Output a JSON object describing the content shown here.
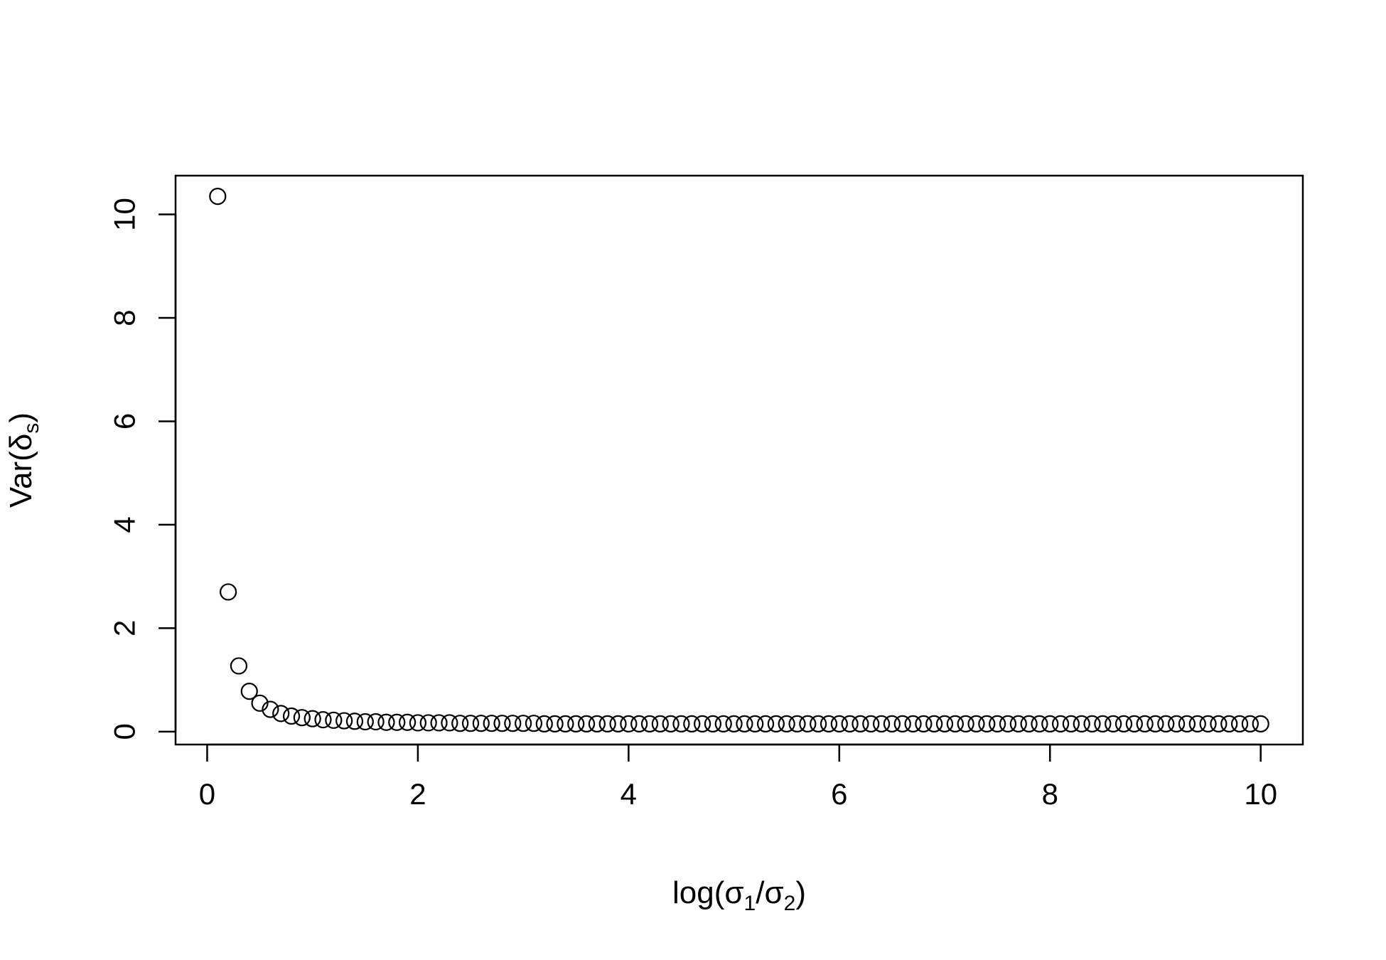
{
  "chart_data": {
    "type": "scatter",
    "title": "",
    "xlabel": {
      "base": "log(σ",
      "sub1": "1",
      "mid": "/σ",
      "sub2": "2",
      "end": ")"
    },
    "ylabel": {
      "base": "Var(δ",
      "sub": "s",
      "end": ")"
    },
    "xlim": [
      -0.3,
      10.4
    ],
    "ylim": [
      -0.25,
      10.75
    ],
    "x_ticks": [
      0,
      2,
      4,
      6,
      8,
      10
    ],
    "x_tick_labels": [
      "0",
      "2",
      "4",
      "6",
      "8",
      "10"
    ],
    "y_ticks": [
      0,
      2,
      4,
      6,
      8,
      10
    ],
    "y_tick_labels": [
      "0",
      "2",
      "4",
      "6",
      "8",
      "10"
    ],
    "grid": false,
    "legend": "none",
    "marker": "open-circle",
    "x": [
      0.1,
      0.2,
      0.3,
      0.4,
      0.5,
      0.6,
      0.7,
      0.8,
      0.9,
      1.0,
      1.1,
      1.2,
      1.3,
      1.4,
      1.5,
      1.6,
      1.7,
      1.8,
      1.9,
      2.0,
      2.1,
      2.2,
      2.3,
      2.4,
      2.5,
      2.6,
      2.7,
      2.8,
      2.9,
      3.0,
      3.1,
      3.2,
      3.3,
      3.4,
      3.5,
      3.6,
      3.7,
      3.8,
      3.9,
      4.0,
      4.1,
      4.2,
      4.3,
      4.4,
      4.5,
      4.6,
      4.7,
      4.8,
      4.9,
      5.0,
      5.1,
      5.2,
      5.3,
      5.4,
      5.5,
      5.6,
      5.7,
      5.8,
      5.9,
      6.0,
      6.1,
      6.2,
      6.3,
      6.4,
      6.5,
      6.6,
      6.7,
      6.8,
      6.9,
      7.0,
      7.1,
      7.2,
      7.3,
      7.4,
      7.5,
      7.6,
      7.7,
      7.8,
      7.9,
      8.0,
      8.1,
      8.2,
      8.3,
      8.4,
      8.5,
      8.6,
      8.7,
      8.8,
      8.9,
      9.0,
      9.1,
      9.2,
      9.3,
      9.4,
      9.5,
      9.6,
      9.7,
      9.8,
      9.9,
      10.0
    ],
    "y": [
      10.35,
      2.7,
      1.27,
      0.78,
      0.55,
      0.43,
      0.35,
      0.3,
      0.27,
      0.25,
      0.23,
      0.22,
      0.21,
      0.2,
      0.19,
      0.19,
      0.18,
      0.18,
      0.18,
      0.17,
      0.17,
      0.17,
      0.17,
      0.16,
      0.16,
      0.16,
      0.16,
      0.16,
      0.16,
      0.16,
      0.16,
      0.15,
      0.15,
      0.15,
      0.15,
      0.15,
      0.15,
      0.15,
      0.15,
      0.15,
      0.15,
      0.15,
      0.15,
      0.15,
      0.15,
      0.15,
      0.15,
      0.15,
      0.15,
      0.15,
      0.15,
      0.15,
      0.15,
      0.15,
      0.15,
      0.15,
      0.15,
      0.15,
      0.15,
      0.15,
      0.15,
      0.15,
      0.15,
      0.15,
      0.15,
      0.15,
      0.15,
      0.15,
      0.15,
      0.15,
      0.15,
      0.15,
      0.15,
      0.15,
      0.15,
      0.15,
      0.15,
      0.15,
      0.15,
      0.15,
      0.15,
      0.15,
      0.15,
      0.15,
      0.15,
      0.15,
      0.15,
      0.15,
      0.15,
      0.15,
      0.15,
      0.15,
      0.15,
      0.15,
      0.15,
      0.15,
      0.15,
      0.15,
      0.15,
      0.15
    ]
  }
}
